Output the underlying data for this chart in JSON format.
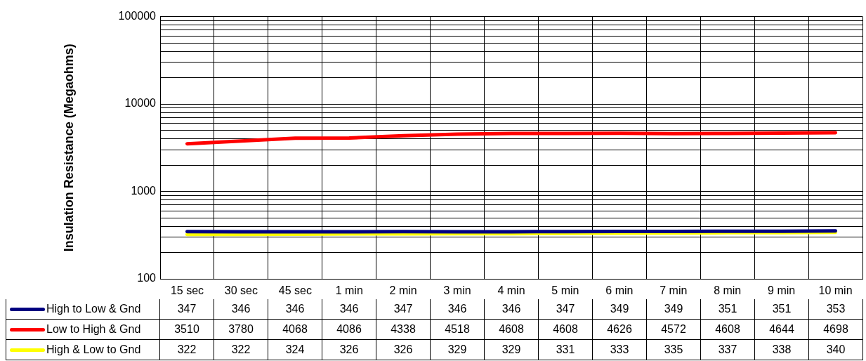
{
  "chart_data": {
    "type": "line",
    "ylabel": "Insulation Resistance (Megaohms)",
    "categories": [
      "15 sec",
      "30 sec",
      "45 sec",
      "1 min",
      "2 min",
      "3 min",
      "4 min",
      "5 min",
      "6 min",
      "7 min",
      "8 min",
      "9 min",
      "10 min"
    ],
    "series": [
      {
        "name": "High to Low & Gnd",
        "color": "#000080",
        "values": [
          347,
          346,
          346,
          346,
          347,
          346,
          346,
          347,
          349,
          349,
          351,
          351,
          353
        ]
      },
      {
        "name": "Low to High & Gnd",
        "color": "#ff0000",
        "values": [
          3510,
          3780,
          4068,
          4086,
          4338,
          4518,
          4608,
          4608,
          4626,
          4572,
          4608,
          4644,
          4698
        ]
      },
      {
        "name": "High & Low to Gnd",
        "color": "#ffff00",
        "values": [
          322,
          322,
          324,
          326,
          326,
          329,
          329,
          331,
          333,
          335,
          337,
          338,
          340
        ]
      }
    ],
    "log": "y",
    "ylim": [
      100,
      100000
    ],
    "yticks": [
      100,
      {
        "value": 200,
        "label": null
      },
      {
        "value": 300,
        "label": null
      },
      {
        "value": 400,
        "label": null
      },
      {
        "value": 500,
        "label": null
      },
      {
        "value": 600,
        "label": null
      },
      {
        "value": 700,
        "label": null
      },
      {
        "value": 800,
        "label": null
      },
      {
        "value": 900,
        "label": null
      },
      1000,
      {
        "value": 2000,
        "label": null
      },
      {
        "value": 3000,
        "label": null
      },
      {
        "value": 4000,
        "label": null
      },
      {
        "value": 5000,
        "label": null
      },
      {
        "value": 6000,
        "label": null
      },
      {
        "value": 7000,
        "label": null
      },
      {
        "value": 8000,
        "label": null
      },
      {
        "value": 9000,
        "label": null
      },
      10000,
      {
        "value": 20000,
        "label": null
      },
      {
        "value": 30000,
        "label": null
      },
      {
        "value": 40000,
        "label": null
      },
      {
        "value": 50000,
        "label": null
      },
      {
        "value": 60000,
        "label": null
      },
      {
        "value": 70000,
        "label": null
      },
      {
        "value": 80000,
        "label": null
      },
      {
        "value": 90000,
        "label": null
      },
      100000
    ],
    "grid": true,
    "legend": "bottom",
    "data_labels": true,
    "marker": "none",
    "line_style": "solid"
  }
}
